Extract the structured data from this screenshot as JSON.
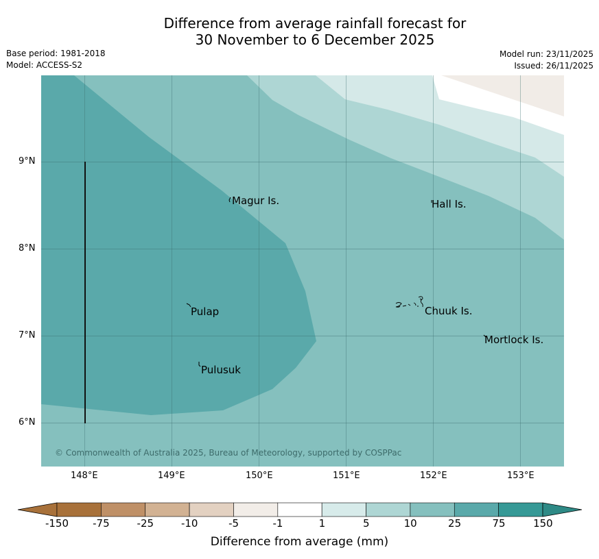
{
  "header": {
    "title_line1": "Difference from average rainfall forecast for",
    "title_line2": "30 November to 6 December 2025",
    "base_period": "Base period: 1981-2018",
    "model": "Model: ACCESS-S2",
    "model_run": "Model run: 23/11/2025",
    "issued": "Issued: 26/11/2025"
  },
  "map": {
    "lat_labels": [
      "9°N",
      "8°N",
      "7°N",
      "6°N"
    ],
    "lon_labels": [
      "148°E",
      "149°E",
      "150°E",
      "151°E",
      "152°E",
      "153°E"
    ],
    "places": [
      "Magur Is.",
      "Hall Is.",
      "Pulap",
      "Chuuk Is.",
      "Mortlock Is.",
      "Pulusuk"
    ],
    "copyright": "© Commonwealth of Australia 2025, Bureau of Meteorology, supported by COSPPac",
    "colors": {
      "band_75": "#5aa9aa",
      "band_25": "#85c0be",
      "band_10": "#aed6d4",
      "band_5": "#d5e9e8",
      "band_neg1": "#ffffff",
      "band_neg5": "#f1ece7"
    }
  },
  "colorbar": {
    "ticks": [
      "-150",
      "-75",
      "-25",
      "-10",
      "-5",
      "-1",
      "1",
      "5",
      "10",
      "25",
      "75",
      "150"
    ],
    "colors": [
      "#a8713a",
      "#bf9067",
      "#d2b293",
      "#e3d1c1",
      "#f2ede8",
      "#ffffff",
      "#d7ebea",
      "#aed6d4",
      "#85c0be",
      "#5aa9aa",
      "#369996"
    ],
    "under_color": "#a8713a",
    "over_color": "#2e8a86",
    "label": "Difference from average (mm)"
  }
}
